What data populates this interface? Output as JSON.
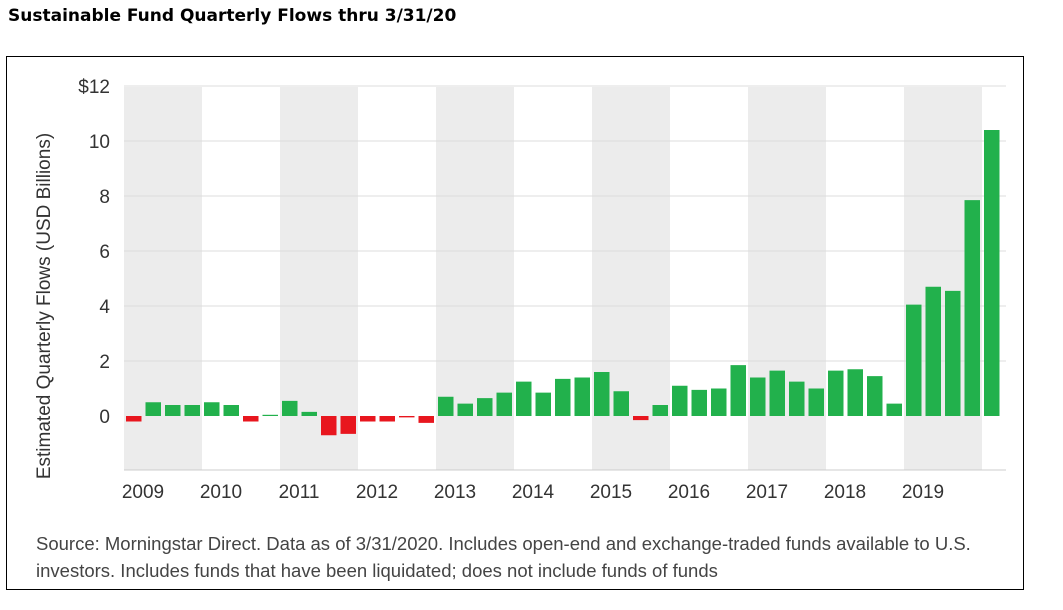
{
  "title": "Sustainable Fund Quarterly Flows thru 3/31/20",
  "source": "Source: Morningstar Direct. Data as of 3/31/2020. Includes open-end and exchange-traded funds available to U.S. investors. Includes funds that have been liquidated; does not include funds of funds",
  "colors": {
    "positive": "#22b14c",
    "negative": "#e8161e",
    "band": "#ececec",
    "grid": "#dddddd"
  },
  "chart_data": {
    "type": "bar",
    "title": "Sustainable Fund Quarterly Flows thru 3/31/20",
    "ylabel": "Estimated Quarterly Flows (USD Billions)",
    "xlabel": "",
    "ylim": [
      -2,
      12
    ],
    "yticks": [
      0,
      2,
      4,
      6,
      8,
      10,
      12
    ],
    "ytick_labels": [
      "0",
      "2",
      "4",
      "6",
      "8",
      "10",
      "$12"
    ],
    "years": [
      "2009",
      "2010",
      "2011",
      "2012",
      "2013",
      "2014",
      "2015",
      "2016",
      "2017",
      "2018",
      "2019"
    ],
    "quarters": [
      "2009Q1",
      "2009Q2",
      "2009Q3",
      "2009Q4",
      "2010Q1",
      "2010Q2",
      "2010Q3",
      "2010Q4",
      "2011Q1",
      "2011Q2",
      "2011Q3",
      "2011Q4",
      "2012Q1",
      "2012Q2",
      "2012Q3",
      "2012Q4",
      "2013Q1",
      "2013Q2",
      "2013Q3",
      "2013Q4",
      "2014Q1",
      "2014Q2",
      "2014Q3",
      "2014Q4",
      "2015Q1",
      "2015Q2",
      "2015Q3",
      "2015Q4",
      "2016Q1",
      "2016Q2",
      "2016Q3",
      "2016Q4",
      "2017Q1",
      "2017Q2",
      "2017Q3",
      "2017Q4",
      "2018Q1",
      "2018Q2",
      "2018Q3",
      "2018Q4",
      "2019Q1",
      "2019Q2",
      "2019Q3",
      "2019Q4",
      "2020Q1"
    ],
    "values": [
      -0.2,
      0.5,
      0.4,
      0.4,
      0.5,
      0.4,
      -0.2,
      0.0,
      0.55,
      0.15,
      -0.7,
      -0.65,
      -0.2,
      -0.2,
      -0.05,
      -0.25,
      0.7,
      0.45,
      0.65,
      0.85,
      1.25,
      0.85,
      1.35,
      1.4,
      1.6,
      0.9,
      -0.15,
      0.4,
      1.1,
      0.95,
      1.0,
      1.85,
      1.4,
      1.65,
      1.25,
      1.0,
      1.65,
      1.7,
      1.45,
      0.45,
      4.05,
      4.7,
      4.55,
      7.85,
      10.4
    ],
    "grid": true,
    "legend": "none"
  }
}
